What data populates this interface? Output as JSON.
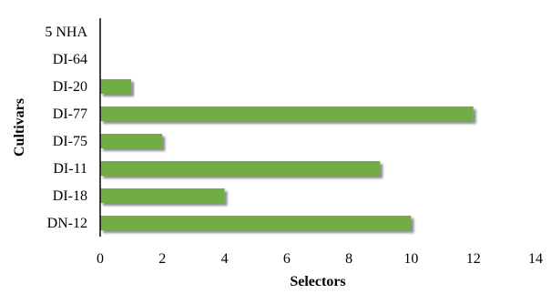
{
  "chart_data": {
    "type": "bar",
    "orientation": "horizontal",
    "categories": [
      "5 NHA",
      "DI-64",
      "DI-20",
      "DI-77",
      "DI-75",
      "DI-11",
      "DI-18",
      "DN-12"
    ],
    "values": [
      0,
      0,
      1,
      12,
      2,
      9,
      4,
      10
    ],
    "xlabel": "Selectors",
    "ylabel": "Cultivars",
    "xlim": [
      0,
      14
    ],
    "xticks": [
      "0",
      "2",
      "4",
      "6",
      "8",
      "10",
      "12",
      "14"
    ],
    "grid": false,
    "legend": "none",
    "bar_color": "#70ad47"
  }
}
